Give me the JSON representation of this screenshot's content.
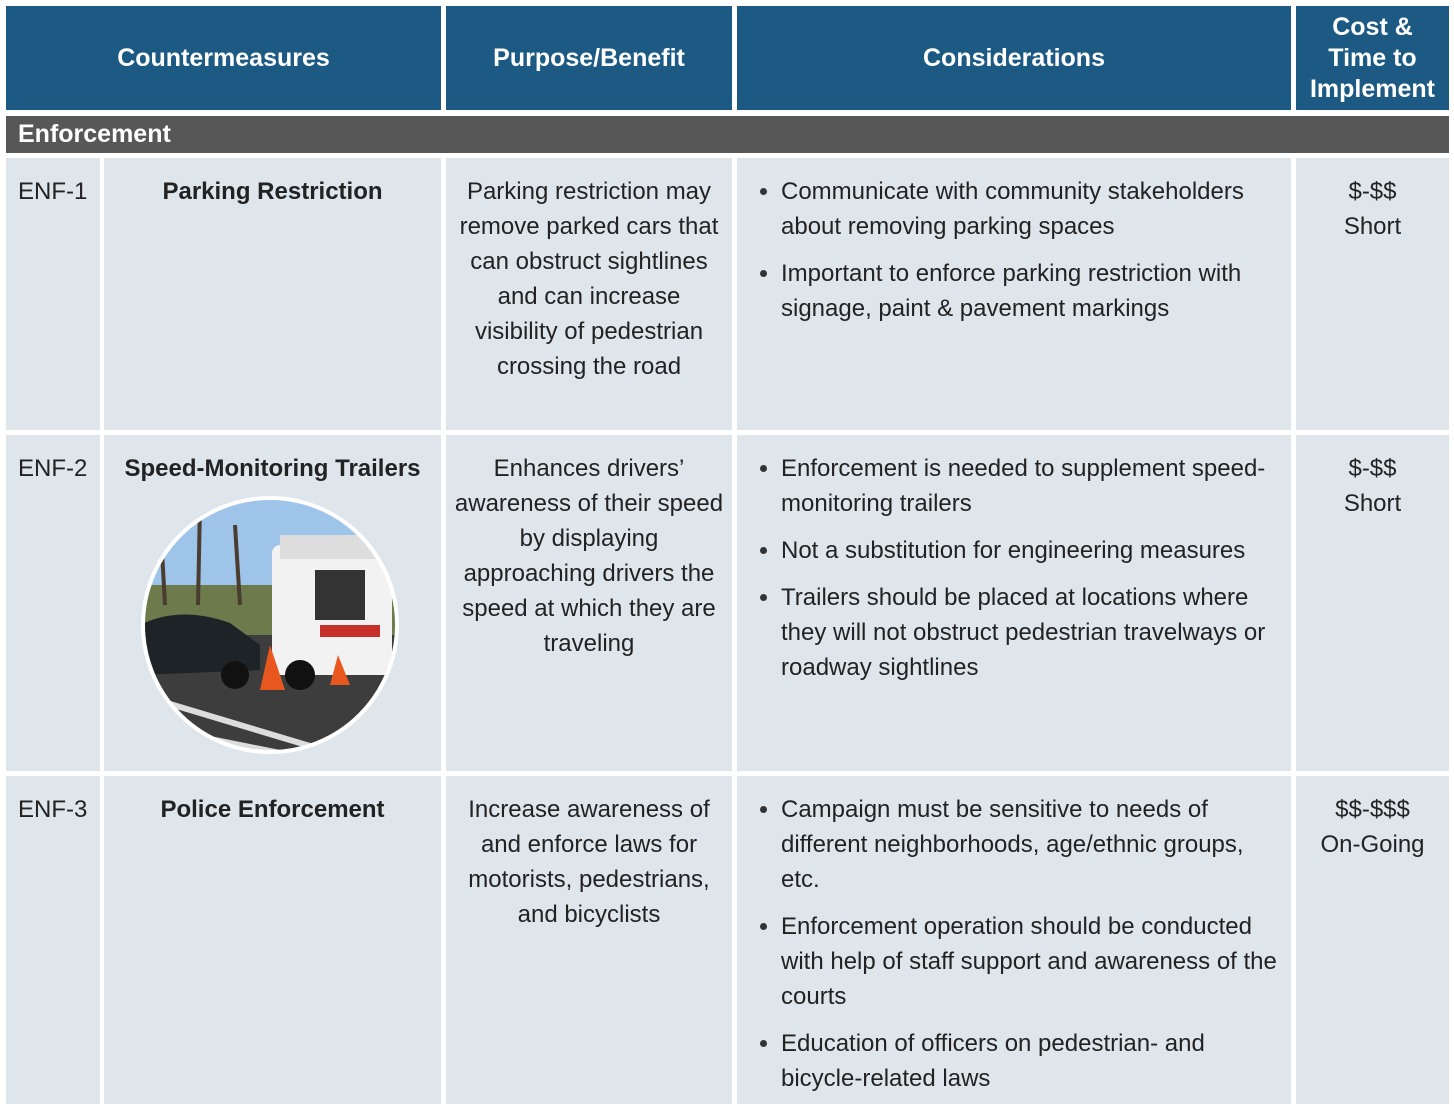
{
  "header": {
    "columns": [
      "Countermeasures",
      "Purpose/Benefit",
      "Considerations",
      "Cost & Time to Implement"
    ]
  },
  "section": "Enforcement",
  "rows": [
    {
      "id": "ENF-1",
      "name": "Parking Restriction",
      "purpose": "Parking restriction may remove parked cars that can obstruct sightlines and can increase visibility of pedestrian crossing the road",
      "considerations": [
        "Communicate with community stakeholders about removing parking spaces",
        "Important to enforce parking restriction with signage, paint & pavement markings"
      ],
      "cost": "$-$$",
      "time": "Short"
    },
    {
      "id": "ENF-2",
      "name": "Speed-Monitoring Trailers",
      "purpose": "Enhances drivers’ awareness of their speed by displaying approaching drivers the speed at which they are traveling",
      "considerations": [
        "Enforcement is needed to supplement speed-monitoring trailers",
        "Not a substitution for engineering measures",
        "Trailers should be placed at locations where they will not obstruct pedestrian travelways or roadway sightlines"
      ],
      "cost": "$-$$",
      "time": "Short"
    },
    {
      "id": "ENF-3",
      "name": "Police Enforcement",
      "purpose": "Increase awareness of and enforce laws for motorists, pedestrians, and bicyclists",
      "considerations": [
        "Campaign must be sensitive to needs of different neighborhoods, age/ethnic groups, etc.",
        "Enforcement operation should be conducted with help of staff support and awareness of the courts",
        "Education of officers on pedestrian- and bicycle-related laws"
      ],
      "cost": "$$-$$$",
      "time": "On-Going"
    }
  ]
}
